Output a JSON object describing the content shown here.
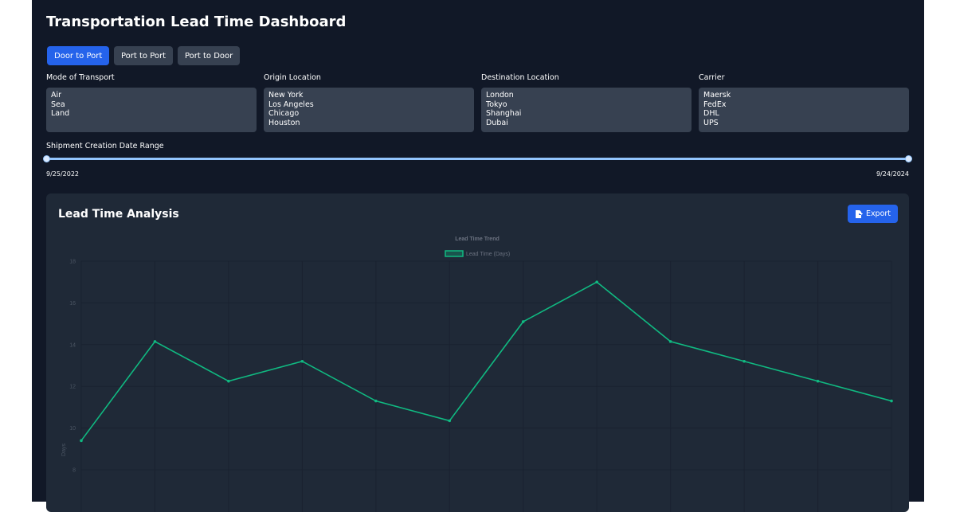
{
  "title": "Transportation Lead Time Dashboard",
  "tabs": [
    {
      "label": "Door to Port",
      "active": true
    },
    {
      "label": "Port to Port"
    },
    {
      "label": "Port to Door"
    }
  ],
  "filters": [
    {
      "label": "Mode of Transport",
      "options": [
        "Air",
        "Sea",
        "Land"
      ]
    },
    {
      "label": "Origin Location",
      "options": [
        "New York",
        "Los Angeles",
        "Chicago",
        "Houston"
      ]
    },
    {
      "label": "Destination Location",
      "options": [
        "London",
        "Tokyo",
        "Shanghai",
        "Dubai"
      ]
    },
    {
      "label": "Carrier",
      "options": [
        "Maersk",
        "FedEx",
        "DHL",
        "UPS"
      ]
    }
  ],
  "date_range": {
    "label": "Shipment Creation Date Range",
    "start": "9/25/2022",
    "end": "9/24/2024"
  },
  "card": {
    "title": "Lead Time Analysis",
    "export_label": "Export",
    "export_icon": "file-export-icon"
  },
  "colors": {
    "accent": "#2563eb",
    "line": "#10b981"
  },
  "chart_data": {
    "type": "line",
    "title": "Lead Time Trend",
    "ylabel": "Days",
    "xlabel": "",
    "ylim": [
      8,
      18
    ],
    "yticks": [
      8,
      10,
      12,
      14,
      16,
      18
    ],
    "grid": true,
    "legend": "top",
    "series": [
      {
        "name": "Lead Time (Days)",
        "values": [
          9.4,
          14.15,
          12.25,
          13.2,
          11.3,
          10.35,
          15.1,
          17.0,
          14.15,
          13.2,
          12.25,
          11.3
        ]
      }
    ]
  }
}
